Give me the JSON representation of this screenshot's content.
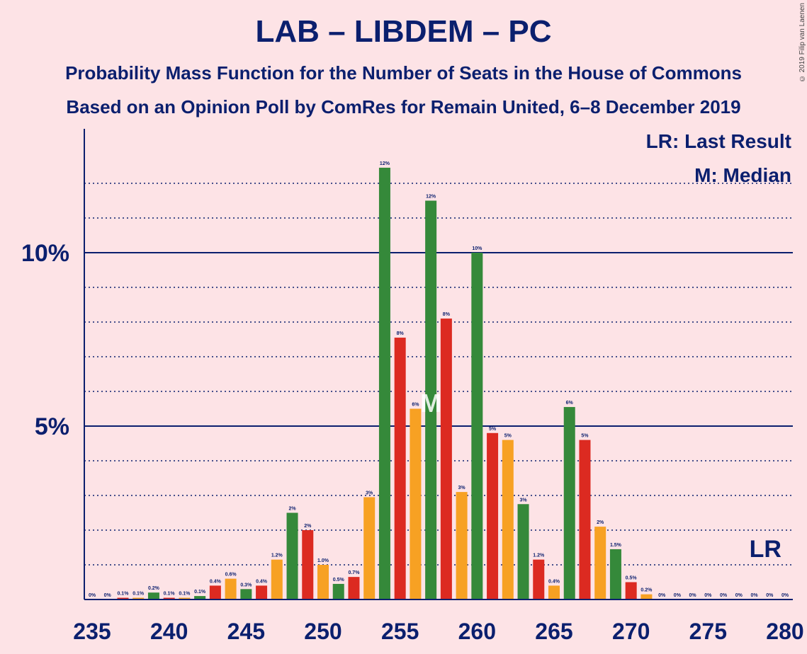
{
  "title": "LAB – LIBDEM – PC",
  "subtitle_1": "Probability Mass Function for the Number of Seats in the House of Commons",
  "subtitle_2": "Based on an Opinion Poll by ComRes for Remain United, 6–8 December 2019",
  "copyright": "© 2019 Filip van Laenen",
  "legend": {
    "last_result": "LR: Last Result",
    "median": "M: Median"
  },
  "colors": {
    "background": "#fde3e6",
    "text": "#0b1f6e",
    "green": "#35893a",
    "red": "#dc2a21",
    "orange": "#f7a123"
  },
  "chart_data": {
    "type": "bar",
    "x": [
      235,
      236,
      237,
      238,
      239,
      240,
      241,
      242,
      243,
      244,
      245,
      246,
      247,
      248,
      249,
      250,
      251,
      252,
      253,
      254,
      255,
      256,
      257,
      258,
      259,
      260,
      261,
      262,
      263,
      264,
      265,
      266,
      267,
      268,
      269,
      270,
      271,
      272,
      273,
      274,
      275,
      276,
      277,
      278,
      279,
      280
    ],
    "values": [
      0,
      0,
      0.05,
      0.05,
      0.2,
      0.05,
      0.05,
      0.1,
      0.4,
      0.6,
      0.3,
      0.4,
      1.15,
      2.5,
      2.0,
      1.0,
      0.45,
      0.65,
      2.95,
      12.45,
      7.55,
      5.5,
      11.5,
      8.1,
      3.1,
      10.0,
      4.8,
      4.6,
      2.75,
      1.15,
      0.4,
      5.55,
      4.6,
      2.1,
      1.45,
      0.5,
      0.15,
      0,
      0,
      0,
      0,
      0,
      0,
      0,
      0,
      0
    ],
    "labels": [
      "0%",
      "0%",
      "0.1%",
      "0.1%",
      "0.2%",
      "0.1%",
      "0.1%",
      "0.1%",
      "0.4%",
      "0.6%",
      "0.3%",
      "0.4%",
      "1.2%",
      "2%",
      "2%",
      "1.0%",
      "0.5%",
      "0.7%",
      "3%",
      "12%",
      "8%",
      "6%",
      "12%",
      "8%",
      "3%",
      "10%",
      "5%",
      "5%",
      "3%",
      "1.2%",
      "0.4%",
      "6%",
      "5%",
      "2%",
      "1.5%",
      "0.5%",
      "0.2%",
      "0%",
      "0%",
      "0%",
      "0%",
      "0%",
      "0%",
      "0%",
      "0%",
      "0%"
    ],
    "color_cycle": [
      "orange",
      "green",
      "red"
    ],
    "xticks": [
      "235",
      "240",
      "245",
      "250",
      "255",
      "260",
      "265",
      "270",
      "275",
      "280"
    ],
    "yticks": [
      "5%",
      "10%"
    ],
    "ylim": [
      0,
      13
    ],
    "median_seat": 257,
    "median_label": "M",
    "last_result_seat": 279,
    "last_result_label": "LR"
  }
}
